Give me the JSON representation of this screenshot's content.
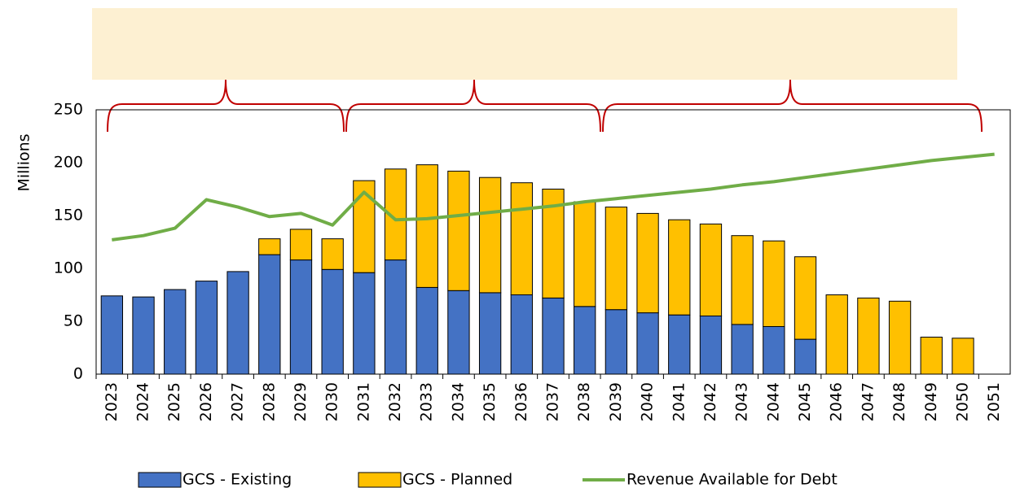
{
  "chart_data": {
    "type": "bar",
    "y_label": "Millions",
    "categories": [
      "2023",
      "2024",
      "2025",
      "2026",
      "2027",
      "2028",
      "2029",
      "2030",
      "2031",
      "2032",
      "2033",
      "2034",
      "2035",
      "2036",
      "2037",
      "2038",
      "2039",
      "2040",
      "2041",
      "2042",
      "2043",
      "2044",
      "2045",
      "2046",
      "2047",
      "2048",
      "2049",
      "2050",
      "2051"
    ],
    "series": [
      {
        "name": "GCS - Existing",
        "color": "#4472c4",
        "kind": "bar",
        "values": [
          74,
          73,
          80,
          88,
          97,
          113,
          108,
          99,
          96,
          108,
          82,
          79,
          77,
          75,
          72,
          64,
          61,
          58,
          56,
          55,
          47,
          45,
          33,
          0,
          0,
          0,
          0,
          0,
          null
        ]
      },
      {
        "name": "GCS - Planned",
        "color": "#ffc000",
        "kind": "bar",
        "values": [
          0,
          0,
          0,
          0,
          0,
          15,
          29,
          29,
          87,
          86,
          116,
          113,
          109,
          106,
          103,
          99,
          97,
          94,
          90,
          87,
          84,
          81,
          78,
          75,
          72,
          69,
          35,
          34,
          null
        ]
      },
      {
        "name": "Revenue Available for Debt",
        "color": "#70ad47",
        "kind": "line",
        "values": [
          127,
          131,
          138,
          165,
          158,
          149,
          152,
          141,
          172,
          146,
          147,
          150,
          153,
          156,
          159,
          163,
          166,
          169,
          172,
          175,
          179,
          182,
          186,
          190,
          194,
          198,
          202,
          205,
          208
        ]
      }
    ],
    "ylim": [
      0,
      250
    ],
    "yticks": [
      0,
      50,
      100,
      150,
      200,
      250
    ],
    "grid": false,
    "legend": "bottom"
  }
}
